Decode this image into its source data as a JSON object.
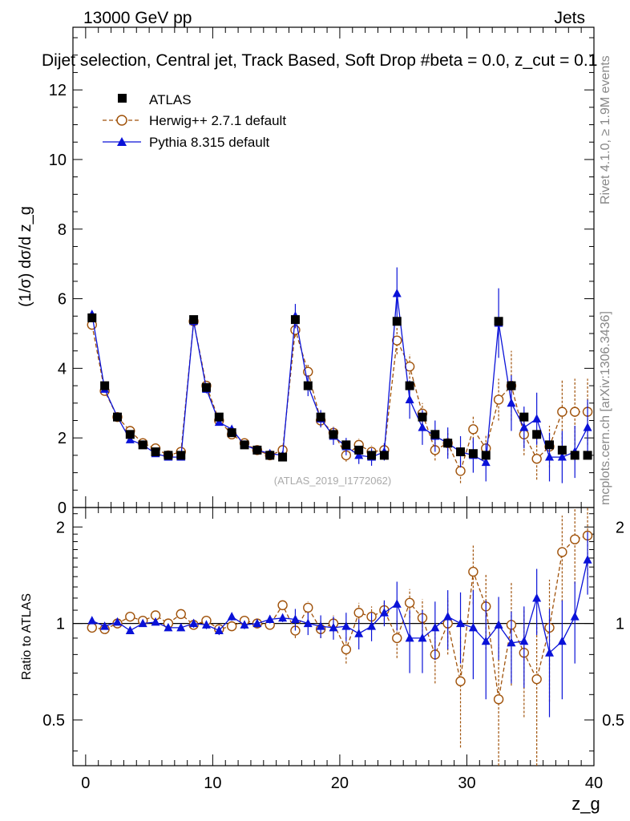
{
  "header": {
    "energy_label": "13000 GeV pp",
    "category_label": "Jets",
    "selection_label": "Dijet selection, Central jet, Track Based, Soft Drop #beta = 0.0, z_cut = 0.1"
  },
  "side_labels": {
    "rivet": "Rivet 4.1.0, ≥ 1.9M events",
    "mcplots": "mcplots.cern.ch [arXiv:1306.3436]"
  },
  "watermark": "(ATLAS_2019_I1772062)",
  "colors": {
    "data": "#000000",
    "herwig": "#a0520a",
    "pythia": "#0a12d8"
  },
  "chart_data": [
    {
      "type": "scatter",
      "panel": "main",
      "ylabel": "(1/σ) dσ/d z_g",
      "xlim": [
        -1,
        40
      ],
      "ylim": [
        0,
        13.8
      ],
      "yticks": [
        0,
        2,
        4,
        6,
        8,
        10,
        12
      ],
      "legend_position": "top-left",
      "x": [
        0.5,
        1.5,
        2.5,
        3.5,
        4.5,
        5.5,
        6.5,
        7.5,
        8.5,
        9.5,
        10.5,
        11.5,
        12.5,
        13.5,
        14.5,
        15.5,
        16.5,
        17.5,
        18.5,
        19.5,
        20.5,
        21.5,
        22.5,
        23.5,
        24.5,
        25.5,
        26.5,
        27.5,
        28.5,
        29.5,
        30.5,
        31.5,
        32.5,
        33.5,
        34.5,
        35.5,
        36.5,
        37.5,
        38.5,
        39.5
      ],
      "series": [
        {
          "name": "ATLAS",
          "marker": "square",
          "values": [
            5.45,
            3.5,
            2.6,
            2.1,
            1.8,
            1.6,
            1.5,
            1.5,
            5.4,
            3.45,
            2.6,
            2.15,
            1.8,
            1.65,
            1.5,
            1.45,
            5.4,
            3.5,
            2.6,
            2.1,
            1.8,
            1.65,
            1.5,
            1.5,
            5.35,
            3.5,
            2.6,
            2.1,
            1.85,
            1.6,
            1.55,
            1.5,
            5.35,
            3.5,
            2.6,
            2.1,
            1.8,
            1.65,
            1.5,
            1.5
          ],
          "errors": [
            0.05,
            0.05,
            0.04,
            0.04,
            0.04,
            0.04,
            0.04,
            0.04,
            0.05,
            0.05,
            0.05,
            0.05,
            0.05,
            0.05,
            0.05,
            0.05,
            0.06,
            0.06,
            0.06,
            0.06,
            0.06,
            0.06,
            0.06,
            0.06,
            0.07,
            0.07,
            0.07,
            0.07,
            0.07,
            0.07,
            0.07,
            0.07,
            0.08,
            0.08,
            0.08,
            0.08,
            0.08,
            0.08,
            0.08,
            0.08
          ]
        },
        {
          "name": "Herwig++ 2.7.1 default",
          "marker": "open-circle",
          "line": "dashed",
          "values": [
            5.25,
            3.35,
            2.6,
            2.2,
            1.85,
            1.7,
            1.5,
            1.6,
            5.35,
            3.5,
            2.5,
            2.1,
            1.85,
            1.65,
            1.5,
            1.65,
            5.1,
            3.9,
            2.5,
            2.15,
            1.5,
            1.8,
            1.6,
            1.65,
            4.8,
            4.05,
            2.7,
            1.65,
            1.85,
            1.05,
            2.25,
            1.7,
            3.1,
            3.5,
            2.1,
            1.4,
            1.75,
            2.75,
            2.75,
            2.75
          ],
          "errors": [
            0.08,
            0.08,
            0.07,
            0.07,
            0.07,
            0.07,
            0.07,
            0.07,
            0.1,
            0.1,
            0.1,
            0.1,
            0.1,
            0.1,
            0.1,
            0.1,
            0.2,
            0.2,
            0.18,
            0.18,
            0.18,
            0.18,
            0.18,
            0.18,
            0.4,
            0.35,
            0.3,
            0.3,
            0.35,
            0.35,
            0.4,
            0.4,
            0.6,
            1.0,
            0.6,
            0.6,
            0.6,
            0.9,
            0.95,
            0.95
          ]
        },
        {
          "name": "Pythia 8.315 default",
          "marker": "filled-triangle",
          "line": "solid",
          "values": [
            5.55,
            3.4,
            2.6,
            1.95,
            1.8,
            1.55,
            1.45,
            1.45,
            5.35,
            3.4,
            2.45,
            2.25,
            1.8,
            1.65,
            1.55,
            1.5,
            5.5,
            3.5,
            2.55,
            2.05,
            1.75,
            1.5,
            1.45,
            1.6,
            6.15,
            3.1,
            2.3,
            2.05,
            1.85,
            1.6,
            1.5,
            1.3,
            5.3,
            3.0,
            2.3,
            2.55,
            1.45,
            1.45,
            1.6,
            2.3
          ],
          "errors": [
            0.07,
            0.07,
            0.06,
            0.06,
            0.06,
            0.06,
            0.06,
            0.06,
            0.12,
            0.12,
            0.1,
            0.1,
            0.1,
            0.1,
            0.1,
            0.1,
            0.35,
            0.3,
            0.25,
            0.25,
            0.25,
            0.25,
            0.25,
            0.25,
            0.75,
            0.55,
            0.5,
            0.45,
            0.45,
            0.45,
            0.5,
            0.55,
            1.0,
            0.8,
            0.6,
            0.75,
            0.7,
            0.75,
            0.75,
            0.8
          ]
        }
      ]
    },
    {
      "type": "scatter",
      "panel": "ratio",
      "xlabel": "z_g",
      "ylabel": "Ratio to ATLAS",
      "xlim": [
        -1,
        40
      ],
      "ylim": [
        0.36,
        2.3
      ],
      "yticks": [
        0.5,
        1,
        2
      ],
      "xticks": [
        0,
        10,
        20,
        30,
        40
      ],
      "x": [
        0.5,
        1.5,
        2.5,
        3.5,
        4.5,
        5.5,
        6.5,
        7.5,
        8.5,
        9.5,
        10.5,
        11.5,
        12.5,
        13.5,
        14.5,
        15.5,
        16.5,
        17.5,
        18.5,
        19.5,
        20.5,
        21.5,
        22.5,
        23.5,
        24.5,
        25.5,
        26.5,
        27.5,
        28.5,
        29.5,
        30.5,
        31.5,
        32.5,
        33.5,
        34.5,
        35.5,
        36.5,
        37.5,
        38.5,
        39.5
      ],
      "series": [
        {
          "name": "Herwig++ 2.7.1 default",
          "values": [
            0.97,
            0.96,
            1.0,
            1.05,
            1.02,
            1.06,
            1.0,
            1.07,
            0.99,
            1.02,
            0.96,
            0.98,
            1.02,
            1.0,
            0.99,
            1.14,
            0.95,
            1.12,
            0.96,
            1.0,
            0.83,
            1.08,
            1.05,
            1.1,
            0.9,
            1.16,
            1.04,
            0.8,
            1.0,
            0.66,
            1.45,
            1.13,
            0.58,
            0.99,
            0.81,
            0.67,
            0.97,
            1.67,
            1.83,
            1.88
          ],
          "errors": [
            0.02,
            0.02,
            0.02,
            0.02,
            0.02,
            0.02,
            0.02,
            0.02,
            0.02,
            0.03,
            0.03,
            0.03,
            0.03,
            0.03,
            0.03,
            0.03,
            0.05,
            0.05,
            0.06,
            0.06,
            0.08,
            0.08,
            0.08,
            0.08,
            0.12,
            0.12,
            0.15,
            0.15,
            0.2,
            0.25,
            0.3,
            0.3,
            0.28,
            0.35,
            0.3,
            0.35,
            0.4,
            0.5,
            0.5,
            0.5
          ]
        },
        {
          "name": "Pythia 8.315 default",
          "values": [
            1.02,
            0.98,
            1.01,
            0.95,
            1.0,
            1.01,
            0.97,
            0.97,
            1.0,
            0.99,
            0.95,
            1.05,
            0.99,
            1.0,
            1.03,
            1.04,
            1.03,
            1.0,
            0.98,
            0.97,
            0.98,
            0.93,
            0.98,
            1.08,
            1.15,
            0.9,
            0.9,
            0.97,
            1.05,
            1.0,
            0.97,
            0.88,
            0.99,
            0.87,
            0.88,
            1.2,
            0.81,
            0.88,
            1.05,
            1.58
          ],
          "errors": [
            0.02,
            0.02,
            0.02,
            0.02,
            0.02,
            0.02,
            0.02,
            0.02,
            0.03,
            0.03,
            0.03,
            0.03,
            0.03,
            0.03,
            0.03,
            0.03,
            0.08,
            0.08,
            0.08,
            0.08,
            0.1,
            0.1,
            0.1,
            0.1,
            0.2,
            0.2,
            0.2,
            0.2,
            0.22,
            0.25,
            0.3,
            0.3,
            0.22,
            0.22,
            0.25,
            0.28,
            0.3,
            0.3,
            0.3,
            0.35
          ]
        }
      ]
    }
  ]
}
